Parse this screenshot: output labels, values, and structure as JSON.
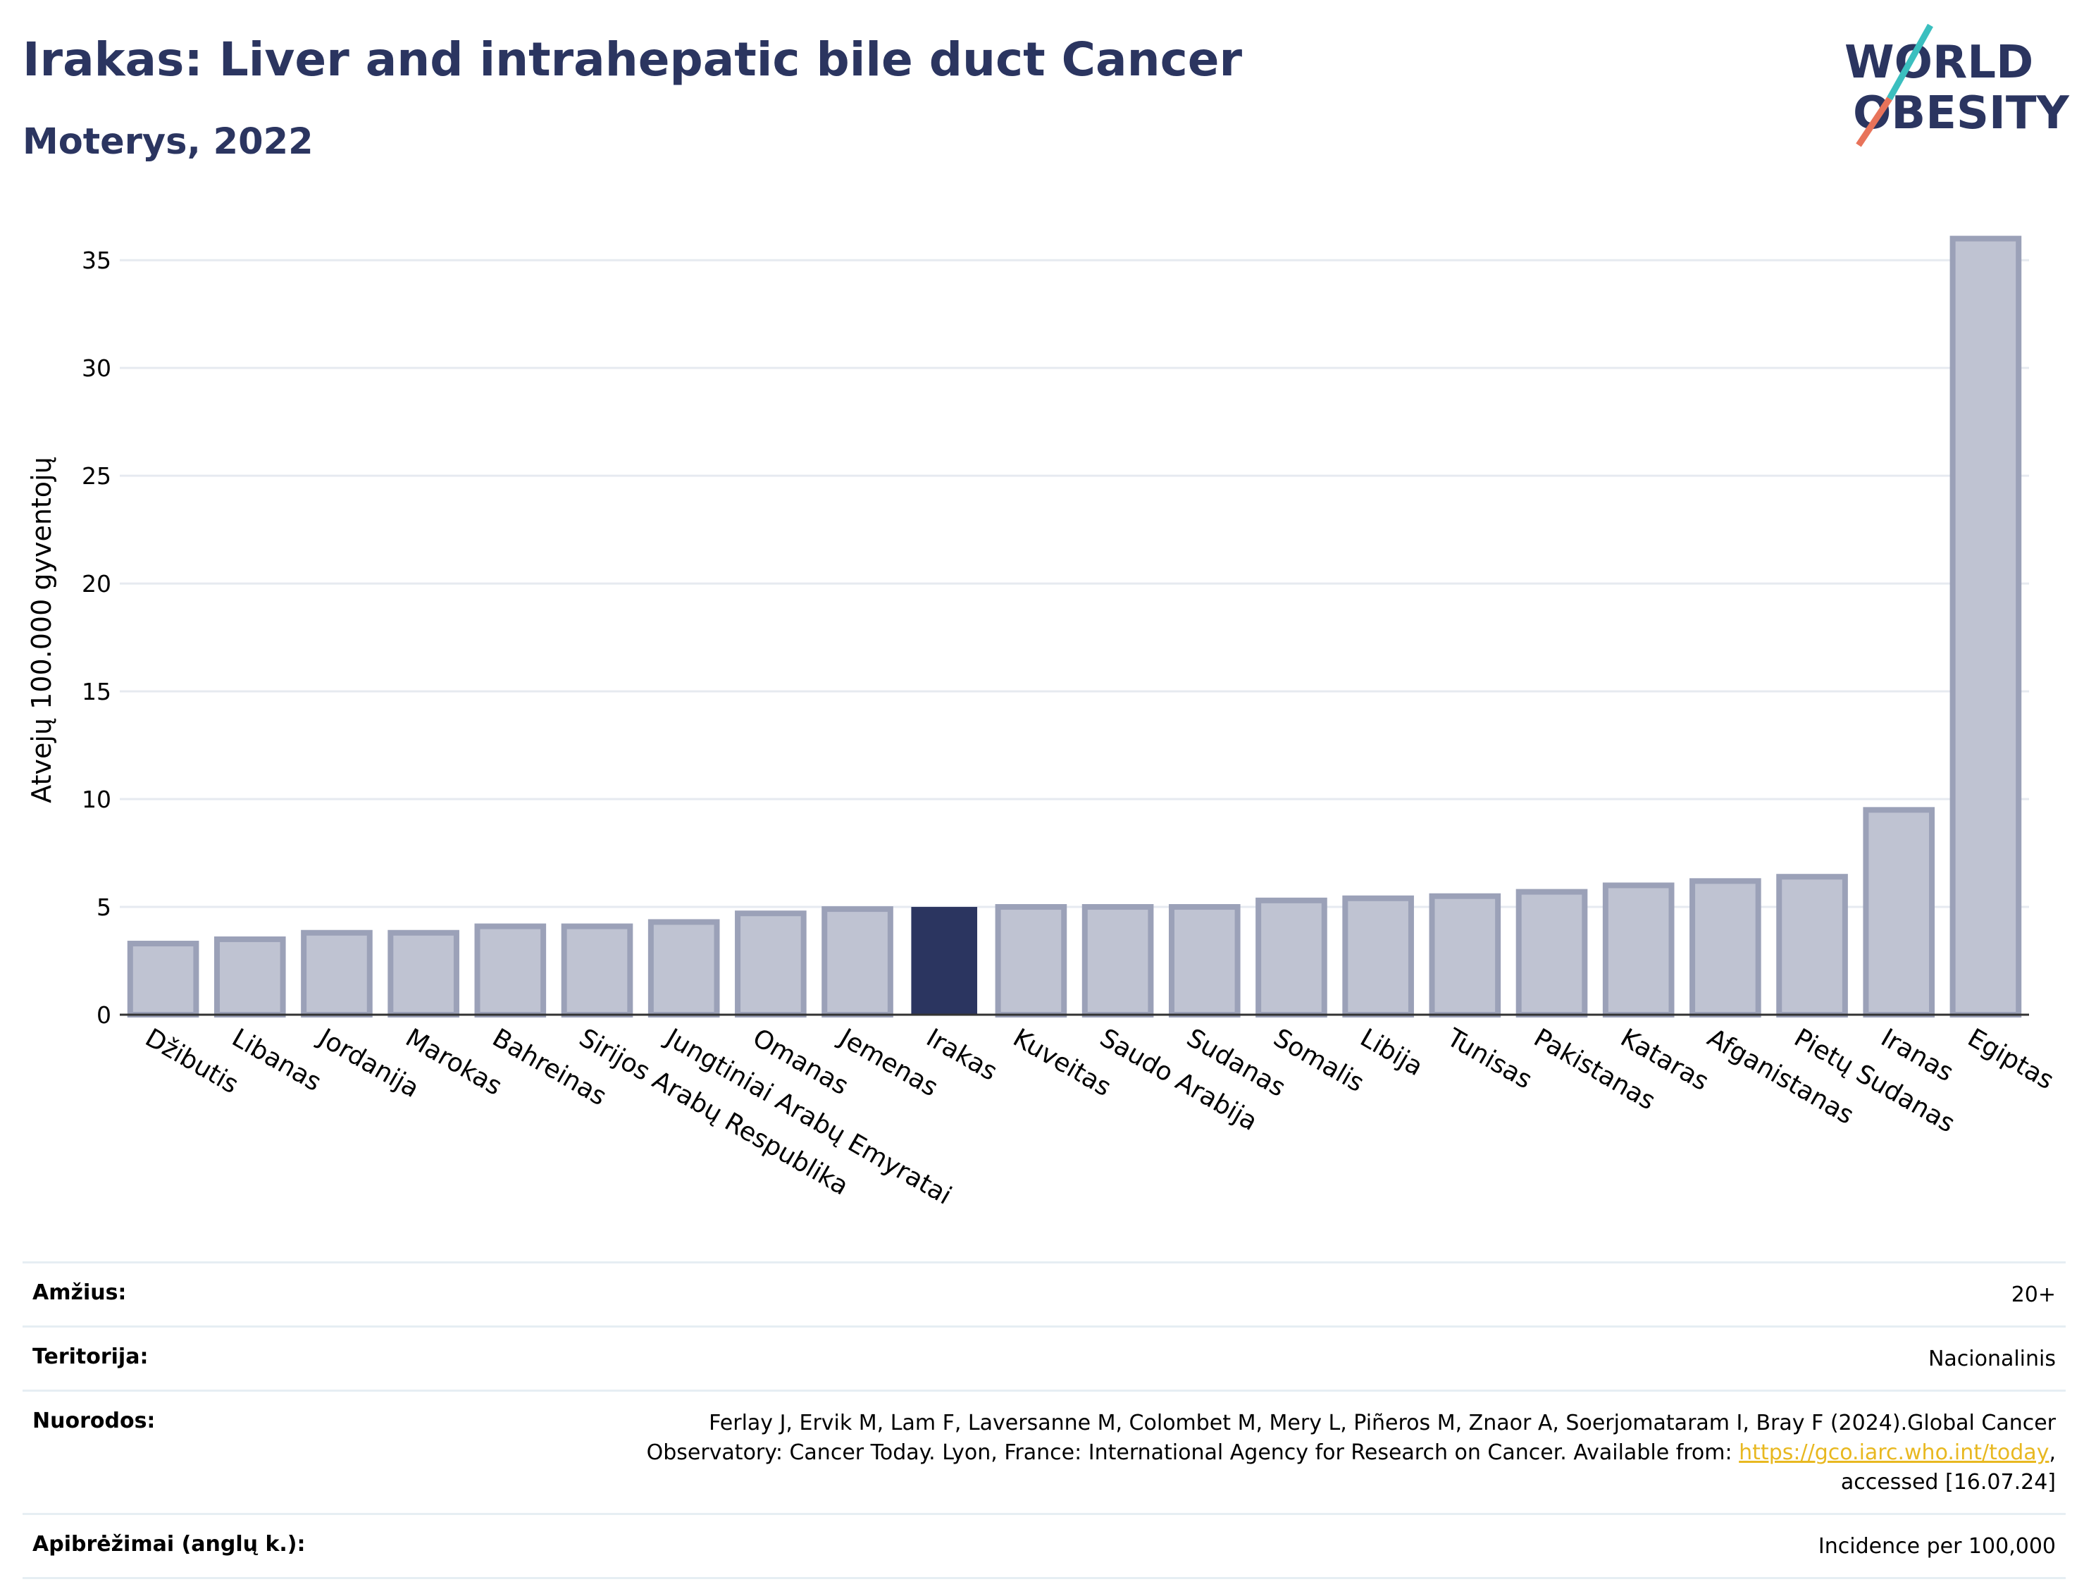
{
  "header": {
    "title": "Irakas: Liver and intrahepatic bile duct Cancer",
    "subtitle": "Moterys, 2022"
  },
  "logo": {
    "line1": "WORLD",
    "line2": "OBESITY",
    "accent1": "#3bbfbf",
    "accent2": "#e8735a"
  },
  "colors": {
    "primary": "#2b3560",
    "bar": "#bfc3d2",
    "bar_border": "#9ba1b8",
    "grid": "#e6eaf0"
  },
  "chart_data": {
    "type": "bar",
    "ylabel": "Atvejų 100.000 gyventojų",
    "ylim": [
      0,
      37
    ],
    "yticks": [
      0,
      5,
      10,
      15,
      20,
      25,
      30,
      35
    ],
    "grid": true,
    "highlight": "Irakas",
    "categories": [
      "Džibutis",
      "Libanas",
      "Jordanija",
      "Marokas",
      "Bahreinas",
      "Sirijos Arabų Respublika",
      "Jungtiniai Arabų Emyratai",
      "Omanas",
      "Jemenas",
      "Irakas",
      "Kuveitas",
      "Saudo Arabija",
      "Sudanas",
      "Somalis",
      "Libija",
      "Tunisas",
      "Pakistanas",
      "Kataras",
      "Afganistanas",
      "Pietų Sudanas",
      "Iranas",
      "Egiptas"
    ],
    "values": [
      3.3,
      3.5,
      3.8,
      3.8,
      4.1,
      4.1,
      4.3,
      4.7,
      4.9,
      5.0,
      5.0,
      5.0,
      5.0,
      5.3,
      5.4,
      5.5,
      5.7,
      6.0,
      6.2,
      6.4,
      9.5,
      36.0
    ]
  },
  "meta": [
    {
      "key": "Amžius:",
      "value": "20+"
    },
    {
      "key": "Teritorija:",
      "value": "Nacionalinis"
    },
    {
      "key": "Nuorodos:",
      "value_part1": "Ferlay J, Ervik M, Lam F, Laversanne M, Colombet M, Mery L, Piñeros M, Znaor A, Soerjomataram I, Bray F (2024).Global Cancer Observatory: Cancer Today. Lyon, France: International Agency for Research on Cancer. Available from: ",
      "link": "https://gco.iarc.who.int/today",
      "value_part2": ", accessed [16.07.24]"
    },
    {
      "key": "Apibrėžimai (anglų k.):",
      "value": "Incidence per 100,000"
    }
  ]
}
